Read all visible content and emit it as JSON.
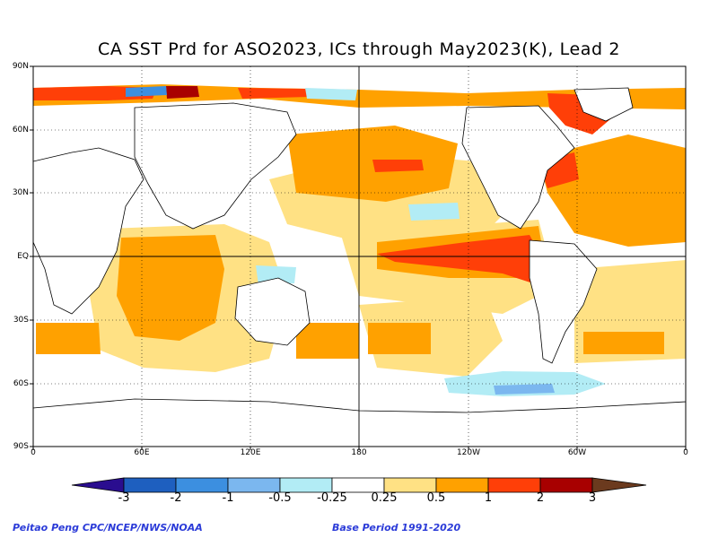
{
  "chart_data": {
    "type": "heatmap",
    "title": "CA SST Prd for ASO2023, ICs through May2023(K), Lead 2",
    "y_ticks": [
      "90N",
      "60N",
      "30N",
      "EQ",
      "30S",
      "60S",
      "90S"
    ],
    "x_ticks": [
      "0",
      "60E",
      "120E",
      "180",
      "120W",
      "60W",
      "0"
    ],
    "colorbar": {
      "labels": [
        "-3",
        "-2",
        "-1",
        "-0.5",
        "-0.25",
        "0.25",
        "0.5",
        "1",
        "2",
        "3"
      ],
      "bins": [
        {
          "range": "< -3",
          "color": "#2a0d8f"
        },
        {
          "range": "-3 to -2",
          "color": "#1e5fbf"
        },
        {
          "range": "-2 to -1",
          "color": "#3c8fe0"
        },
        {
          "range": "-1 to -0.5",
          "color": "#7bb7ef"
        },
        {
          "range": "-0.5 to -0.25",
          "color": "#b2ecf5"
        },
        {
          "range": "-0.25 to 0.25",
          "color": "#ffffff"
        },
        {
          "range": "0.25 to 0.5",
          "color": "#ffe184"
        },
        {
          "range": "0.5 to 1",
          "color": "#ffa100"
        },
        {
          "range": "1 to 2",
          "color": "#ff3f08"
        },
        {
          "range": "2 to 3",
          "color": "#a80000"
        },
        {
          "range": "> 3",
          "color": "#6b3a1e"
        }
      ]
    },
    "units": "K",
    "grid": "dotted lines every 30 degrees, solid equator and 180 meridian"
  },
  "credits": {
    "left": "Peitao Peng CPC/NCEP/NWS/NOAA",
    "right": "Base Period 1991-2020"
  }
}
